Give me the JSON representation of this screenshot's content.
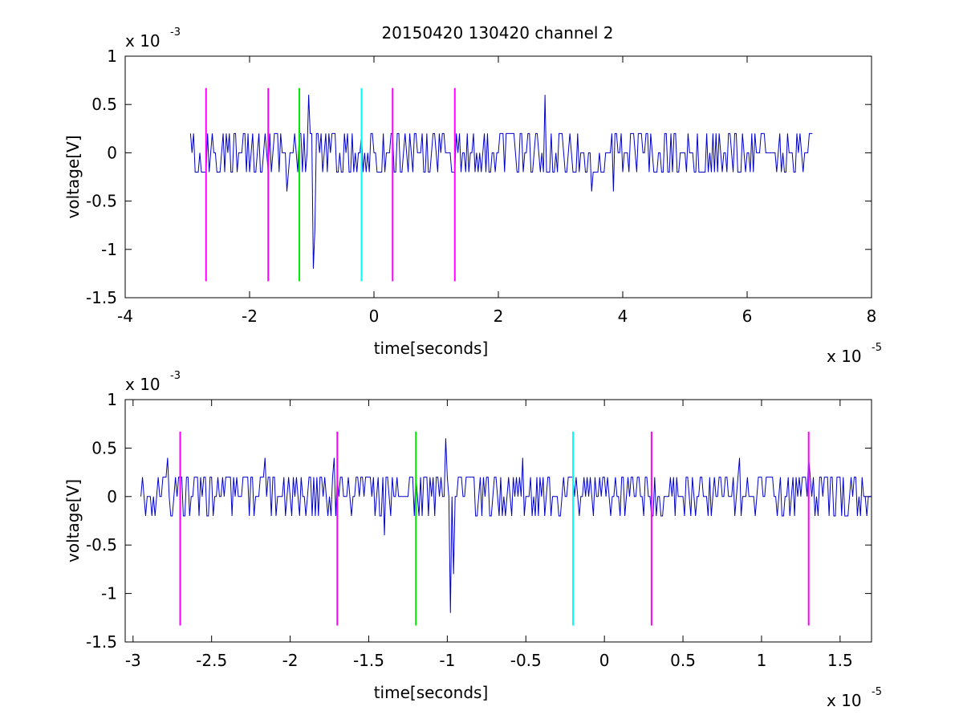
{
  "figure": {
    "title": "20150420 130420 channel 2"
  },
  "colors": {
    "signal": "#0000cc",
    "magenta": "#ff00ff",
    "green": "#00ee00",
    "cyan": "#00ffff",
    "axis": "#000000"
  },
  "chart_data": [
    {
      "type": "line",
      "title": "20150420 130420 channel 2",
      "xlabel": "time[seconds]",
      "ylabel": "voltage[V]",
      "x_scale_label": "x 10",
      "x_scale_exp": "-5",
      "y_scale_label": "x 10",
      "y_scale_exp": "-3",
      "x_unit": 1e-05,
      "y_unit": 0.001,
      "xlim": [
        -4,
        8
      ],
      "ylim": [
        -1.5,
        1
      ],
      "xticks": [
        -4,
        -2,
        0,
        2,
        4,
        6,
        8
      ],
      "xtick_labels": [
        "-4",
        "-2",
        "0",
        "2",
        "4",
        "6",
        "8"
      ],
      "yticks": [
        -1.5,
        -1,
        -0.5,
        0,
        0.5,
        1
      ],
      "ytick_labels": [
        "-1.5",
        "-1",
        "-0.5",
        "0",
        "0.5",
        "1"
      ],
      "grid": false,
      "series": [
        {
          "color": "#0000cc",
          "x_start": -2.95,
          "x_step": 0.025,
          "noise_levels": [
            0,
            0.2,
            -0.2
          ],
          "values": [],
          "spikes": [
            {
              "x": -1.4,
              "y": -0.4
            },
            {
              "x": -1.05,
              "y": 0.6
            },
            {
              "x": -0.98,
              "y": -1.2
            },
            {
              "x": -0.95,
              "y": -0.8
            },
            {
              "x": 2.75,
              "y": 0.6
            },
            {
              "x": 3.5,
              "y": -0.4
            },
            {
              "x": 3.85,
              "y": -0.4
            }
          ]
        }
      ],
      "vlines": [
        {
          "x": -2.7,
          "color": "#ff00ff",
          "y_range": [
            -1.33,
            0.67
          ]
        },
        {
          "x": -1.7,
          "color": "#ff00ff",
          "y_range": [
            -1.33,
            0.67
          ]
        },
        {
          "x": -1.2,
          "color": "#00ee00",
          "y_range": [
            -1.33,
            0.67
          ]
        },
        {
          "x": -0.2,
          "color": "#00ffff",
          "y_range": [
            -1.33,
            0.67
          ]
        },
        {
          "x": 0.3,
          "color": "#ff00ff",
          "y_range": [
            -1.33,
            0.67
          ]
        },
        {
          "x": 1.3,
          "color": "#ff00ff",
          "y_range": [
            -1.33,
            0.67
          ]
        }
      ]
    },
    {
      "type": "line",
      "title": "",
      "xlabel": "time[seconds]",
      "ylabel": "voltage[V]",
      "x_scale_label": "x 10",
      "x_scale_exp": "-5",
      "y_scale_label": "x 10",
      "y_scale_exp": "-3",
      "x_unit": 1e-05,
      "y_unit": 0.001,
      "xlim": [
        -3.05,
        1.7
      ],
      "ylim": [
        -1.5,
        1
      ],
      "xticks": [
        -3,
        -2.5,
        -2,
        -1.5,
        -1,
        -0.5,
        0,
        0.5,
        1,
        1.5
      ],
      "xtick_labels": [
        "-3",
        "-2.5",
        "-2",
        "-1.5",
        "-1",
        "-0.5",
        "0",
        "0.5",
        "1",
        "1.5"
      ],
      "yticks": [
        -1.5,
        -1,
        -0.5,
        0,
        0.5,
        1
      ],
      "ytick_labels": [
        "-1.5",
        "-1",
        "-0.5",
        "0",
        "0.5",
        "1"
      ],
      "grid": false,
      "series": [
        {
          "color": "#0000cc",
          "x_start": -2.95,
          "x_step": 0.01,
          "noise_levels": [
            0,
            0.2,
            0.2,
            0,
            -0.2
          ],
          "values": [],
          "spikes": [
            {
              "x": -2.78,
              "y": 0.4
            },
            {
              "x": -2.16,
              "y": 0.4
            },
            {
              "x": -1.72,
              "y": 0.4
            },
            {
              "x": -1.4,
              "y": -0.4
            },
            {
              "x": -1.01,
              "y": 0.6
            },
            {
              "x": -0.98,
              "y": -1.2
            },
            {
              "x": -0.96,
              "y": -0.8
            },
            {
              "x": -0.52,
              "y": 0.4
            },
            {
              "x": 0.86,
              "y": 0.4
            },
            {
              "x": 1.3,
              "y": 0.4
            },
            {
              "x": 1.61,
              "y": -0.2
            }
          ]
        }
      ],
      "vlines": [
        {
          "x": -2.7,
          "color": "#ff00ff",
          "y_range": [
            -1.33,
            0.67
          ]
        },
        {
          "x": -1.7,
          "color": "#ff00ff",
          "y_range": [
            -1.33,
            0.67
          ]
        },
        {
          "x": -1.2,
          "color": "#00ee00",
          "y_range": [
            -1.33,
            0.67
          ]
        },
        {
          "x": -0.2,
          "color": "#00ffff",
          "y_range": [
            -1.33,
            0.67
          ]
        },
        {
          "x": 0.3,
          "color": "#ff00ff",
          "y_range": [
            -1.33,
            0.67
          ]
        },
        {
          "x": 1.3,
          "color": "#ff00ff",
          "y_range": [
            -1.33,
            0.67
          ]
        }
      ]
    }
  ]
}
